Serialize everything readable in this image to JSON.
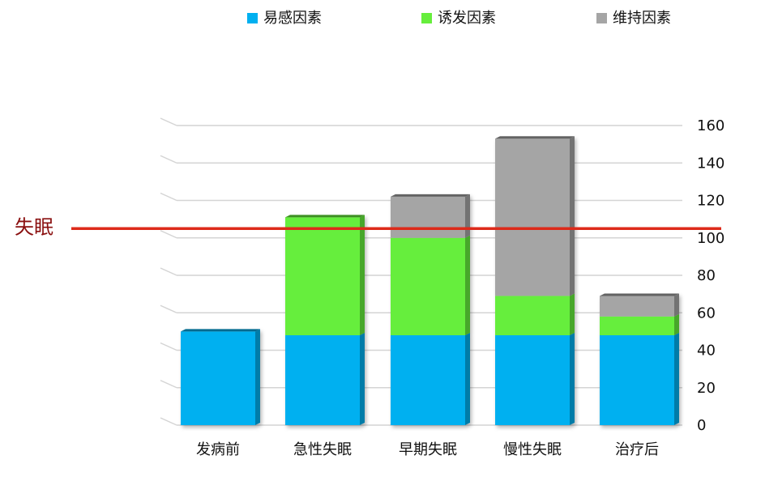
{
  "chart_data": {
    "type": "bar",
    "stacked": true,
    "categories": [
      "发病前",
      "急性失眠",
      "早期失眠",
      "慢性失眠",
      "治疗后"
    ],
    "series": [
      {
        "name": "易感因素",
        "color": "#00b0f0",
        "values": [
          50,
          48,
          48,
          48,
          48
        ]
      },
      {
        "name": "诱发因素",
        "color": "#66ee3c",
        "values": [
          0,
          63,
          52,
          21,
          10
        ]
      },
      {
        "name": "维持因素",
        "color": "#a5a5a5",
        "values": [
          0,
          0,
          22,
          84,
          11
        ]
      }
    ],
    "ylim": [
      0,
      160
    ],
    "yticks": [
      "0",
      "20",
      "40",
      "60",
      "80",
      "100",
      "120",
      "140",
      "160"
    ],
    "grid": true,
    "legend_position": "top",
    "threshold": {
      "label": "失眠",
      "value": 105,
      "color": "#dd2a1a"
    }
  }
}
